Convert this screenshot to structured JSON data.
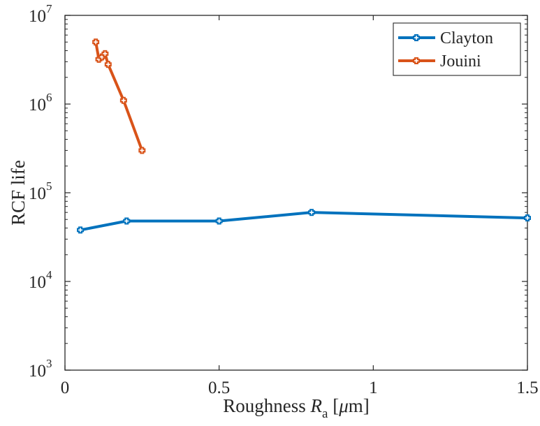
{
  "chart_data": {
    "type": "line",
    "xlabel_main": "Roughness ",
    "xlabel_italic": "R",
    "xlabel_sub": "a",
    "xlabel_unit_open": " [",
    "xlabel_unit_mu": "μ",
    "xlabel_unit_rest": "m]",
    "ylabel": "RCF life",
    "xlim": [
      0,
      1.5
    ],
    "ylim": [
      1000,
      10000000
    ],
    "yscale": "log",
    "grid": false,
    "legend_position": "top-right",
    "x_ticks": [
      {
        "value": 0,
        "label": "0"
      },
      {
        "value": 0.5,
        "label": "0.5"
      },
      {
        "value": 1,
        "label": "1"
      },
      {
        "value": 1.5,
        "label": "1.5"
      }
    ],
    "y_ticks": [
      {
        "value": 1000,
        "base": "10",
        "exp": "3"
      },
      {
        "value": 10000,
        "base": "10",
        "exp": "4"
      },
      {
        "value": 100000,
        "base": "10",
        "exp": "5"
      },
      {
        "value": 1000000,
        "base": "10",
        "exp": "6"
      },
      {
        "value": 10000000,
        "base": "10",
        "exp": "7"
      }
    ],
    "series": [
      {
        "name": "Clayton",
        "color": "#0072BD",
        "x": [
          0.05,
          0.2,
          0.5,
          0.8,
          1.5
        ],
        "y": [
          38000,
          48000,
          48000,
          60000,
          52000
        ]
      },
      {
        "name": "Jouini",
        "color": "#D95319",
        "x": [
          0.1,
          0.11,
          0.12,
          0.13,
          0.14,
          0.19,
          0.25
        ],
        "y": [
          5000000,
          3200000,
          3400000,
          3700000,
          2800000,
          1100000,
          300000
        ]
      }
    ]
  }
}
